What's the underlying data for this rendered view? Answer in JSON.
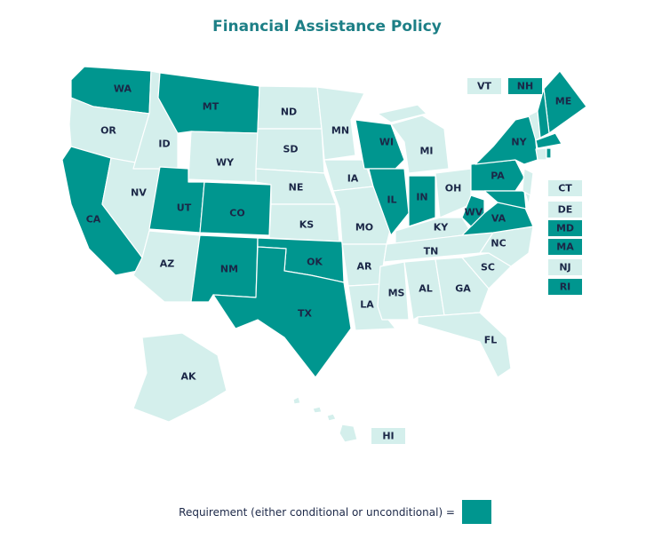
{
  "title": "Financial Assistance Policy",
  "legend": {
    "label": "Requirement (either conditional or unconditional) =",
    "color": "#00968f"
  },
  "no_requirement_color": "#d4efec",
  "states": [
    {
      "abbr": "WA",
      "requirement": true
    },
    {
      "abbr": "OR",
      "requirement": false
    },
    {
      "abbr": "CA",
      "requirement": true
    },
    {
      "abbr": "NV",
      "requirement": false
    },
    {
      "abbr": "ID",
      "requirement": false
    },
    {
      "abbr": "MT",
      "requirement": true
    },
    {
      "abbr": "WY",
      "requirement": false
    },
    {
      "abbr": "UT",
      "requirement": true
    },
    {
      "abbr": "CO",
      "requirement": true
    },
    {
      "abbr": "AZ",
      "requirement": false
    },
    {
      "abbr": "NM",
      "requirement": true
    },
    {
      "abbr": "ND",
      "requirement": false
    },
    {
      "abbr": "SD",
      "requirement": false
    },
    {
      "abbr": "NE",
      "requirement": false
    },
    {
      "abbr": "KS",
      "requirement": false
    },
    {
      "abbr": "OK",
      "requirement": true
    },
    {
      "abbr": "TX",
      "requirement": true
    },
    {
      "abbr": "MN",
      "requirement": false
    },
    {
      "abbr": "IA",
      "requirement": false
    },
    {
      "abbr": "MO",
      "requirement": false
    },
    {
      "abbr": "AR",
      "requirement": false
    },
    {
      "abbr": "LA",
      "requirement": false
    },
    {
      "abbr": "WI",
      "requirement": true
    },
    {
      "abbr": "IL",
      "requirement": true
    },
    {
      "abbr": "MI",
      "requirement": false
    },
    {
      "abbr": "IN",
      "requirement": true
    },
    {
      "abbr": "OH",
      "requirement": false
    },
    {
      "abbr": "KY",
      "requirement": false
    },
    {
      "abbr": "TN",
      "requirement": false
    },
    {
      "abbr": "MS",
      "requirement": false
    },
    {
      "abbr": "AL",
      "requirement": false
    },
    {
      "abbr": "GA",
      "requirement": false
    },
    {
      "abbr": "FL",
      "requirement": false
    },
    {
      "abbr": "SC",
      "requirement": false
    },
    {
      "abbr": "NC",
      "requirement": false
    },
    {
      "abbr": "VA",
      "requirement": true
    },
    {
      "abbr": "WV",
      "requirement": true
    },
    {
      "abbr": "PA",
      "requirement": true
    },
    {
      "abbr": "NY",
      "requirement": true
    },
    {
      "abbr": "ME",
      "requirement": true
    },
    {
      "abbr": "AK",
      "requirement": false
    },
    {
      "abbr": "HI",
      "requirement": false
    },
    {
      "abbr": "VT",
      "requirement": false
    },
    {
      "abbr": "NH",
      "requirement": true
    },
    {
      "abbr": "CT",
      "requirement": false
    },
    {
      "abbr": "DE",
      "requirement": false
    },
    {
      "abbr": "MD",
      "requirement": true
    },
    {
      "abbr": "MA",
      "requirement": true
    },
    {
      "abbr": "NJ",
      "requirement": false
    },
    {
      "abbr": "RI",
      "requirement": true
    }
  ]
}
